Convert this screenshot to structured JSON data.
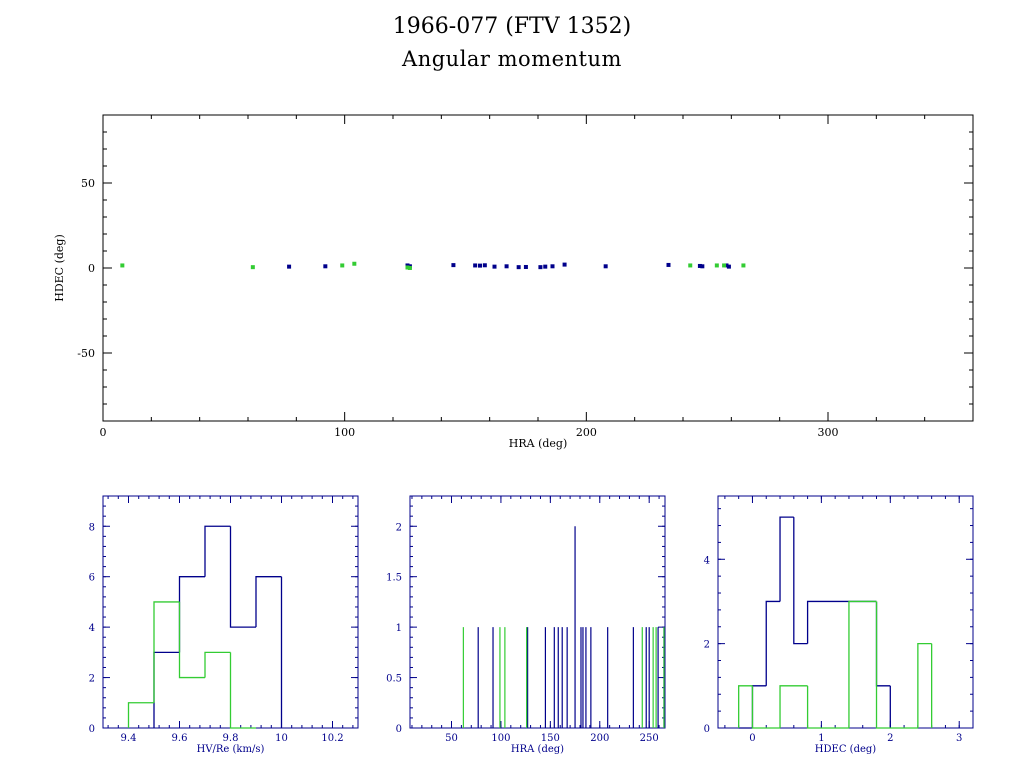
{
  "title": "1966-077 (FTV 1352)",
  "subtitle": "Angular momentum",
  "colors": {
    "axis": "#000000",
    "series_a": "#00008b",
    "series_b": "#33cc33",
    "hist_axis": "#00008b"
  },
  "chart_data": [
    {
      "type": "scatter",
      "xlabel": "HRA (deg)",
      "ylabel": "HDEC (deg)",
      "xlim": [
        0,
        360
      ],
      "ylim": [
        -90,
        90
      ],
      "xticks": [
        0,
        100,
        200,
        300
      ],
      "yticks": [
        -50,
        0,
        50
      ],
      "series": [
        {
          "color": "#00008b",
          "points": [
            [
              77,
              0.8
            ],
            [
              92,
              1.0
            ],
            [
              126,
              1.5
            ],
            [
              127,
              1.0
            ],
            [
              145,
              1.7
            ],
            [
              154,
              1.5
            ],
            [
              156,
              1.4
            ],
            [
              158,
              1.6
            ],
            [
              162,
              0.8
            ],
            [
              167,
              1.0
            ],
            [
              172,
              0.5
            ],
            [
              175,
              0.6
            ],
            [
              181,
              0.5
            ],
            [
              183,
              0.8
            ],
            [
              186,
              1.0
            ],
            [
              191,
              2.0
            ],
            [
              208,
              1.0
            ],
            [
              234,
              1.8
            ],
            [
              247,
              1.2
            ],
            [
              248,
              1.0
            ],
            [
              258,
              1.5
            ],
            [
              259,
              0.8
            ]
          ]
        },
        {
          "color": "#33cc33",
          "points": [
            [
              8,
              1.5
            ],
            [
              62,
              0.5
            ],
            [
              99,
              1.5
            ],
            [
              104,
              2.5
            ],
            [
              126,
              0.3
            ],
            [
              127,
              0.0
            ],
            [
              243,
              1.5
            ],
            [
              254,
              1.5
            ],
            [
              257,
              1.5
            ],
            [
              265,
              1.5
            ]
          ]
        }
      ]
    },
    {
      "type": "histogram",
      "xlabel": "HV/Re (km/s)",
      "xlim": [
        9.3,
        10.3
      ],
      "ylim": [
        0,
        9.2
      ],
      "xticks": [
        "9.4",
        "9.6",
        "9.8",
        "10",
        "10.2"
      ],
      "xtick_values": [
        9.4,
        9.6,
        9.8,
        10.0,
        10.2
      ],
      "yticks": [
        "0",
        "2",
        "4",
        "6",
        "8"
      ],
      "ytick_values": [
        0,
        2,
        4,
        6,
        8
      ],
      "bins": [
        9.4,
        9.5,
        9.6,
        9.7,
        9.8,
        9.9,
        10.0
      ],
      "series": [
        {
          "color": "#00008b",
          "counts": [
            0,
            3,
            6,
            8,
            4,
            6
          ]
        },
        {
          "color": "#33cc33",
          "counts": [
            1,
            5,
            2,
            3,
            0,
            0
          ]
        }
      ]
    },
    {
      "type": "histogram",
      "xlabel": "HRA (deg)",
      "xlim": [
        8,
        266
      ],
      "ylim": [
        0,
        2.3
      ],
      "xticks": [
        "50",
        "100",
        "150",
        "200",
        "250"
      ],
      "xtick_values": [
        50,
        100,
        150,
        200,
        250
      ],
      "yticks": [
        "0",
        "0.5",
        "1",
        "1.5",
        "2"
      ],
      "ytick_values": [
        0,
        0.5,
        1,
        1.5,
        2
      ],
      "series": [
        {
          "color": "#00008b",
          "spikes": [
            [
              77,
              1
            ],
            [
              92,
              1
            ],
            [
              127,
              1
            ],
            [
              145,
              1
            ],
            [
              154,
              1
            ],
            [
              158,
              1
            ],
            [
              162,
              1
            ],
            [
              167,
              1
            ],
            [
              175,
              2
            ],
            [
              181,
              1
            ],
            [
              183,
              1
            ],
            [
              186,
              1
            ],
            [
              191,
              1
            ],
            [
              208,
              1
            ],
            [
              234,
              1
            ],
            [
              247,
              1
            ],
            [
              250,
              1
            ],
            [
              259,
              1
            ],
            [
              265,
              1
            ]
          ]
        },
        {
          "color": "#33cc33",
          "spikes": [
            [
              62,
              1
            ],
            [
              99,
              1
            ],
            [
              104,
              1
            ],
            [
              126,
              1
            ],
            [
              243,
              1
            ],
            [
              254,
              1
            ],
            [
              257,
              1
            ],
            [
              266,
              1
            ]
          ]
        }
      ]
    },
    {
      "type": "histogram",
      "xlabel": "HDEC (deg)",
      "xlim": [
        -0.5,
        3.2
      ],
      "ylim": [
        0,
        5.5
      ],
      "xticks": [
        "0",
        "1",
        "2",
        "3"
      ],
      "xtick_values": [
        0,
        1,
        2,
        3
      ],
      "yticks": [
        "0",
        "2",
        "4"
      ],
      "ytick_values": [
        0,
        2,
        4
      ],
      "series": [
        {
          "color": "#00008b",
          "steps": [
            [
              -0.2,
              0
            ],
            [
              0,
              1
            ],
            [
              0.2,
              3
            ],
            [
              0.4,
              5
            ],
            [
              0.6,
              2
            ],
            [
              0.8,
              3
            ],
            [
              1.4,
              3
            ],
            [
              1.8,
              1
            ],
            [
              2.0,
              0
            ]
          ]
        },
        {
          "color": "#33cc33",
          "steps": [
            [
              -0.2,
              1
            ],
            [
              0,
              0
            ],
            [
              0.4,
              1
            ],
            [
              0.8,
              0
            ],
            [
              1.4,
              3
            ],
            [
              1.8,
              0
            ],
            [
              2.4,
              2
            ],
            [
              2.6,
              0
            ]
          ]
        }
      ]
    }
  ]
}
